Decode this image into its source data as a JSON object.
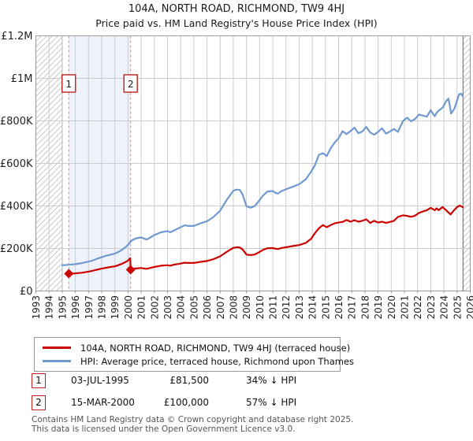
{
  "title": "104A, NORTH ROAD, RICHMOND, TW9 4HJ",
  "subtitle": "Price paid vs. HM Land Registry's House Price Index (HPI)",
  "colors": {
    "price_line": "#cc0000",
    "hpi_line": "#7099cf",
    "grid": "#cccccc",
    "plot_border": "#999999",
    "hatch": "#c9c9c9",
    "hatch_boundary": "#666666",
    "shade": "#eef3fb",
    "sale_dashed": "#f08080",
    "marker_border": "#bb2222",
    "text": "#222222"
  },
  "chart_data": {
    "type": "line",
    "title": "104A, NORTH ROAD, RICHMOND, TW9 4HJ — Price paid vs. HPI",
    "xlabel": "",
    "ylabel": "",
    "grid": true,
    "legend_position": "bottom",
    "x_axis": {
      "min": 1993,
      "max": 2026,
      "ticks": [
        "1993",
        "1994",
        "1995",
        "1996",
        "1997",
        "1998",
        "1999",
        "2000",
        "2001",
        "2002",
        "2003",
        "2004",
        "2005",
        "2006",
        "2007",
        "2008",
        "2009",
        "2010",
        "2011",
        "2012",
        "2013",
        "2014",
        "2015",
        "2016",
        "2017",
        "2018",
        "2019",
        "2020",
        "2021",
        "2022",
        "2023",
        "2024",
        "2025",
        "2026"
      ]
    },
    "y_axis": {
      "min": 0,
      "max": 1200000,
      "ticks": [
        {
          "v": 0,
          "label": "£0"
        },
        {
          "v": 200000,
          "label": "£200K"
        },
        {
          "v": 400000,
          "label": "£400K"
        },
        {
          "v": 600000,
          "label": "£600K"
        },
        {
          "v": 800000,
          "label": "£800K"
        },
        {
          "v": 1000000,
          "label": "£1M"
        },
        {
          "v": 1200000,
          "label": "£1.2M"
        }
      ]
    },
    "hatch_regions": [
      [
        1993,
        1995
      ],
      [
        2025.45,
        2026
      ]
    ],
    "shade_region": [
      1995.5,
      2000.2
    ],
    "sales": [
      {
        "n": "1",
        "year": 1995.5,
        "price": 81500
      },
      {
        "n": "2",
        "year": 2000.2,
        "price": 100000
      }
    ],
    "series": [
      {
        "name": "104A, NORTH ROAD, RICHMOND, TW9 4HJ (terraced house)",
        "color": "#cc0000",
        "points": [
          [
            1995.5,
            81500
          ],
          [
            1995.75,
            82000
          ],
          [
            1996,
            83000
          ],
          [
            1996.5,
            86000
          ],
          [
            1997,
            91000
          ],
          [
            1997.25,
            94000
          ],
          [
            1997.5,
            98000
          ],
          [
            1998,
            105000
          ],
          [
            1998.25,
            108000
          ],
          [
            1998.5,
            111000
          ],
          [
            1999,
            116000
          ],
          [
            1999.25,
            121000
          ],
          [
            1999.5,
            127000
          ],
          [
            1999.75,
            134000
          ],
          [
            2000,
            143000
          ],
          [
            2000.17,
            154000
          ],
          [
            2000.2,
            100000
          ],
          [
            2000.4,
            104000
          ],
          [
            2000.6,
            106000
          ],
          [
            2000.8,
            107000
          ],
          [
            2001,
            108000
          ],
          [
            2001.2,
            106000
          ],
          [
            2001.4,
            104000
          ],
          [
            2001.6,
            107000
          ],
          [
            2001.8,
            110000
          ],
          [
            2002,
            113000
          ],
          [
            2002.5,
            119000
          ],
          [
            2003,
            121000
          ],
          [
            2003.2,
            119000
          ],
          [
            2003.5,
            124000
          ],
          [
            2004,
            129000
          ],
          [
            2004.3,
            133000
          ],
          [
            2004.6,
            132000
          ],
          [
            2005,
            132000
          ],
          [
            2005.5,
            137000
          ],
          [
            2006,
            141000
          ],
          [
            2006.5,
            150000
          ],
          [
            2007,
            163000
          ],
          [
            2007.5,
            184000
          ],
          [
            2008,
            203000
          ],
          [
            2008.3,
            206000
          ],
          [
            2008.5,
            204000
          ],
          [
            2008.7,
            196000
          ],
          [
            2009,
            171000
          ],
          [
            2009.3,
            169000
          ],
          [
            2009.6,
            171000
          ],
          [
            2009.8,
            177000
          ],
          [
            2010,
            184000
          ],
          [
            2010.3,
            195000
          ],
          [
            2010.6,
            201000
          ],
          [
            2011,
            202000
          ],
          [
            2011.2,
            199000
          ],
          [
            2011.4,
            197000
          ],
          [
            2011.6,
            201000
          ],
          [
            2012,
            206000
          ],
          [
            2012.5,
            211000
          ],
          [
            2013,
            216000
          ],
          [
            2013.5,
            226000
          ],
          [
            2013.9,
            245000
          ],
          [
            2014.2,
            272000
          ],
          [
            2014.5,
            295000
          ],
          [
            2014.8,
            310000
          ],
          [
            2015.1,
            300000
          ],
          [
            2015.4,
            310000
          ],
          [
            2015.7,
            318000
          ],
          [
            2016,
            322000
          ],
          [
            2016.3,
            325000
          ],
          [
            2016.6,
            334000
          ],
          [
            2016.9,
            326000
          ],
          [
            2017.2,
            333000
          ],
          [
            2017.5,
            326000
          ],
          [
            2017.8,
            330000
          ],
          [
            2018.1,
            337000
          ],
          [
            2018.4,
            320000
          ],
          [
            2018.7,
            330000
          ],
          [
            2019,
            322000
          ],
          [
            2019.3,
            326000
          ],
          [
            2019.6,
            320000
          ],
          [
            2019.9,
            325000
          ],
          [
            2020.2,
            330000
          ],
          [
            2020.5,
            348000
          ],
          [
            2020.9,
            356000
          ],
          [
            2021.2,
            353000
          ],
          [
            2021.5,
            349000
          ],
          [
            2021.8,
            354000
          ],
          [
            2022.1,
            367000
          ],
          [
            2022.4,
            374000
          ],
          [
            2022.7,
            380000
          ],
          [
            2023,
            391000
          ],
          [
            2023.3,
            380000
          ],
          [
            2023.45,
            389000
          ],
          [
            2023.6,
            380000
          ],
          [
            2023.9,
            395000
          ],
          [
            2024.2,
            378000
          ],
          [
            2024.5,
            360000
          ],
          [
            2024.75,
            378000
          ],
          [
            2025,
            395000
          ],
          [
            2025.2,
            402000
          ],
          [
            2025.35,
            397000
          ],
          [
            2025.45,
            394000
          ]
        ]
      },
      {
        "name": "HPI: Average price, terraced house, Richmond upon Thames",
        "color": "#7099cf",
        "points": [
          [
            1995,
            121000
          ],
          [
            1995.25,
            122000
          ],
          [
            1995.5,
            123500
          ],
          [
            1995.75,
            124500
          ],
          [
            1996,
            126000
          ],
          [
            1996.5,
            131000
          ],
          [
            1997,
            138000
          ],
          [
            1997.25,
            142000
          ],
          [
            1997.5,
            148000
          ],
          [
            1998,
            159000
          ],
          [
            1998.25,
            164000
          ],
          [
            1998.5,
            168000
          ],
          [
            1999,
            176000
          ],
          [
            1999.25,
            183000
          ],
          [
            1999.5,
            192000
          ],
          [
            1999.75,
            203000
          ],
          [
            2000,
            217000
          ],
          [
            2000.2,
            233000
          ],
          [
            2000.4,
            242000
          ],
          [
            2000.6,
            247000
          ],
          [
            2000.8,
            250000
          ],
          [
            2001,
            252000
          ],
          [
            2001.2,
            247000
          ],
          [
            2001.4,
            242000
          ],
          [
            2001.6,
            248000
          ],
          [
            2001.8,
            256000
          ],
          [
            2002,
            263000
          ],
          [
            2002.5,
            276000
          ],
          [
            2003,
            282000
          ],
          [
            2003.2,
            276000
          ],
          [
            2003.5,
            285000
          ],
          [
            2004,
            300000
          ],
          [
            2004.3,
            309000
          ],
          [
            2004.6,
            306000
          ],
          [
            2005,
            306000
          ],
          [
            2005.5,
            318000
          ],
          [
            2006,
            328000
          ],
          [
            2006.5,
            348000
          ],
          [
            2007,
            378000
          ],
          [
            2007.5,
            428000
          ],
          [
            2008,
            472000
          ],
          [
            2008.3,
            477000
          ],
          [
            2008.5,
            475000
          ],
          [
            2008.7,
            455000
          ],
          [
            2009,
            398000
          ],
          [
            2009.3,
            392000
          ],
          [
            2009.6,
            398000
          ],
          [
            2009.8,
            412000
          ],
          [
            2010,
            428000
          ],
          [
            2010.3,
            452000
          ],
          [
            2010.6,
            468000
          ],
          [
            2011,
            470000
          ],
          [
            2011.2,
            462000
          ],
          [
            2011.4,
            458000
          ],
          [
            2011.6,
            468000
          ],
          [
            2012,
            478000
          ],
          [
            2012.5,
            490000
          ],
          [
            2013,
            502000
          ],
          [
            2013.5,
            525000
          ],
          [
            2013.9,
            560000
          ],
          [
            2014.2,
            592000
          ],
          [
            2014.5,
            640000
          ],
          [
            2014.8,
            648000
          ],
          [
            2015.1,
            635000
          ],
          [
            2015.4,
            672000
          ],
          [
            2015.7,
            698000
          ],
          [
            2016,
            718000
          ],
          [
            2016.3,
            752000
          ],
          [
            2016.6,
            738000
          ],
          [
            2016.9,
            752000
          ],
          [
            2017.2,
            768000
          ],
          [
            2017.5,
            742000
          ],
          [
            2017.8,
            750000
          ],
          [
            2018.1,
            772000
          ],
          [
            2018.4,
            745000
          ],
          [
            2018.7,
            735000
          ],
          [
            2019,
            748000
          ],
          [
            2019.3,
            765000
          ],
          [
            2019.6,
            740000
          ],
          [
            2019.9,
            750000
          ],
          [
            2020.2,
            762000
          ],
          [
            2020.5,
            748000
          ],
          [
            2020.9,
            800000
          ],
          [
            2021.2,
            815000
          ],
          [
            2021.5,
            798000
          ],
          [
            2021.8,
            808000
          ],
          [
            2022.1,
            830000
          ],
          [
            2022.4,
            825000
          ],
          [
            2022.7,
            820000
          ],
          [
            2023,
            850000
          ],
          [
            2023.3,
            822000
          ],
          [
            2023.45,
            838000
          ],
          [
            2023.6,
            848000
          ],
          [
            2023.9,
            862000
          ],
          [
            2024.2,
            895000
          ],
          [
            2024.35,
            905000
          ],
          [
            2024.55,
            835000
          ],
          [
            2024.8,
            858000
          ],
          [
            2025,
            896000
          ],
          [
            2025.15,
            925000
          ],
          [
            2025.3,
            928000
          ],
          [
            2025.45,
            915000
          ]
        ]
      }
    ]
  },
  "annotations": [
    {
      "n": "1",
      "date": "03-JUL-1995",
      "price": "£81,500",
      "vs_hpi": "34% ↓ HPI"
    },
    {
      "n": "2",
      "date": "15-MAR-2000",
      "price": "£100,000",
      "vs_hpi": "57% ↓ HPI"
    }
  ],
  "footer": {
    "line1": "Contains HM Land Registry data © Crown copyright and database right 2025.",
    "line2": "This data is licensed under the Open Government Licence v3.0."
  }
}
